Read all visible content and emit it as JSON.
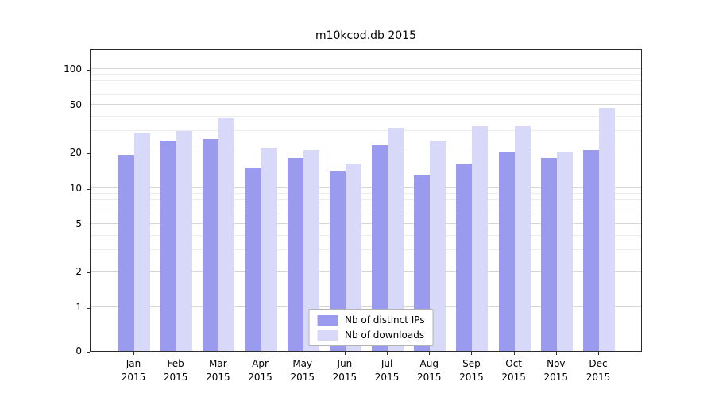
{
  "chart_data": {
    "type": "bar",
    "title": "m10kcod.db 2015",
    "categories": [
      "Jan",
      "Feb",
      "Mar",
      "Apr",
      "May",
      "Jun",
      "Jul",
      "Aug",
      "Sep",
      "Oct",
      "Nov",
      "Dec"
    ],
    "year_label": "2015",
    "series": [
      {
        "name": "Nb of distinct IPs",
        "color": "#9a9aee",
        "values": [
          19,
          25,
          26,
          15,
          18,
          14,
          23,
          13,
          16,
          20,
          18,
          21
        ]
      },
      {
        "name": "Nb of downloads",
        "color": "#d8d8f8",
        "values": [
          29,
          30,
          39,
          22,
          21,
          16,
          32,
          25,
          33,
          33,
          20,
          47
        ]
      }
    ],
    "yscale": "symlog",
    "yticks": [
      0,
      1,
      2,
      5,
      10,
      20,
      50,
      100
    ],
    "minor_yticks": [
      3,
      4,
      6,
      7,
      8,
      9,
      30,
      40,
      60,
      70,
      80,
      90
    ],
    "ylim": [
      0,
      150
    ],
    "xlabel": "",
    "ylabel": "",
    "grid": true,
    "legend_position": "lower center"
  },
  "colors": {
    "grid_major": "#d6d6d6",
    "grid_minor": "#ececec",
    "axis": "#2b2b2b",
    "background": "#ffffff"
  }
}
